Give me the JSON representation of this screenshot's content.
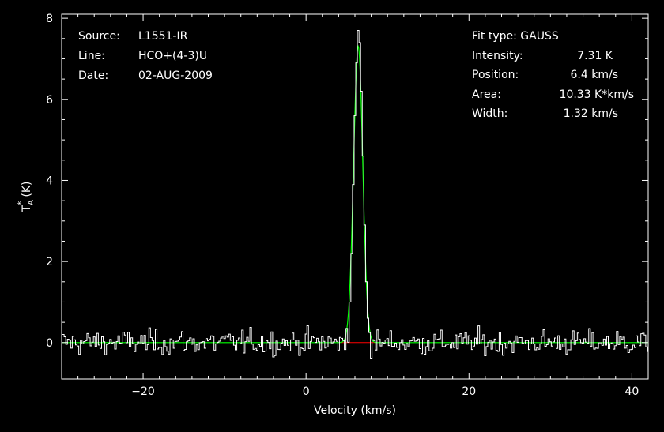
{
  "annotations": {
    "source_label": "Source:",
    "source_value": "L1551-IR",
    "line_label": "Line:",
    "line_value": "HCO+(4-3)U",
    "date_label": "Date:",
    "date_value": "02-AUG-2009",
    "fit_type": "Fit type: GAUSS",
    "intensity_label": "Intensity:",
    "intensity_value": "7.31 K",
    "position_label": "Position:",
    "position_value": "6.4 km/s",
    "area_label": "Area:",
    "area_value": "10.33 K*km/s",
    "width_label": "Width:",
    "width_value": "1.32 km/s"
  },
  "colors": {
    "background": "#000000",
    "axes": "#ffffff",
    "spectrum": "#ffffff",
    "fit": "#00ff00",
    "baseline": "#ff0000"
  },
  "chart_data": {
    "type": "line",
    "xlabel": "Velocity (km/s)",
    "ylabel_main": "T",
    "ylabel_sup": "*",
    "ylabel_sub": "A",
    "ylabel_unit": "(K)",
    "xlim": [
      -30,
      42
    ],
    "ylim": [
      -0.9,
      8.1
    ],
    "xticks": [
      -20,
      0,
      20,
      40
    ],
    "yticks": [
      0,
      2,
      4,
      6,
      8
    ],
    "series": [
      {
        "role": "spectrum",
        "step": 0.2,
        "x_start": -29.8,
        "noise_rms": 0.15,
        "peak_channels": [
          [
            5.0,
            0.35
          ],
          [
            5.4,
            1.0
          ],
          [
            5.6,
            2.2
          ],
          [
            5.8,
            3.9
          ],
          [
            6.0,
            5.6
          ],
          [
            6.2,
            6.9
          ],
          [
            6.4,
            7.7
          ],
          [
            6.6,
            7.4
          ],
          [
            6.8,
            6.2
          ],
          [
            7.0,
            4.6
          ],
          [
            7.2,
            2.9
          ],
          [
            7.4,
            1.5
          ],
          [
            7.6,
            0.6
          ],
          [
            7.8,
            0.25
          ]
        ]
      },
      {
        "role": "gaussian-fit",
        "amplitude": 7.31,
        "center": 6.4,
        "fwhm": 1.32,
        "x_range": [
          -30,
          42
        ]
      },
      {
        "role": "baseline-window",
        "x_range": [
          4.3,
          8.5
        ],
        "y": 0
      }
    ]
  }
}
